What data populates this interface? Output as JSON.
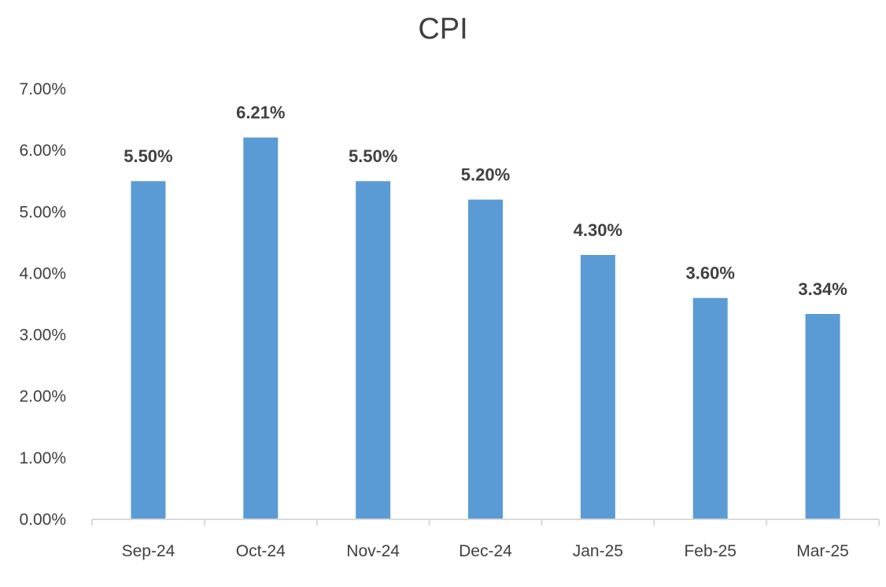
{
  "chart_data": {
    "type": "bar",
    "title": "CPI",
    "xlabel": "",
    "ylabel": "",
    "categories": [
      "Sep-24",
      "Oct-24",
      "Nov-24",
      "Dec-24",
      "Jan-25",
      "Feb-25",
      "Mar-25"
    ],
    "values": [
      5.5,
      6.21,
      5.5,
      5.2,
      4.3,
      3.6,
      3.34
    ],
    "data_labels": [
      "5.50%",
      "6.21%",
      "5.50%",
      "5.20%",
      "4.30%",
      "3.60%",
      "3.34%"
    ],
    "y_ticks": [
      0,
      1,
      2,
      3,
      4,
      5,
      6,
      7
    ],
    "y_tick_labels": [
      "0.00%",
      "1.00%",
      "2.00%",
      "3.00%",
      "4.00%",
      "5.00%",
      "6.00%",
      "7.00%"
    ],
    "ylim": [
      0,
      7
    ],
    "grid": false,
    "legend": "none",
    "bar_color": "#5b9bd5",
    "axis_color": "#d9d9d9"
  }
}
